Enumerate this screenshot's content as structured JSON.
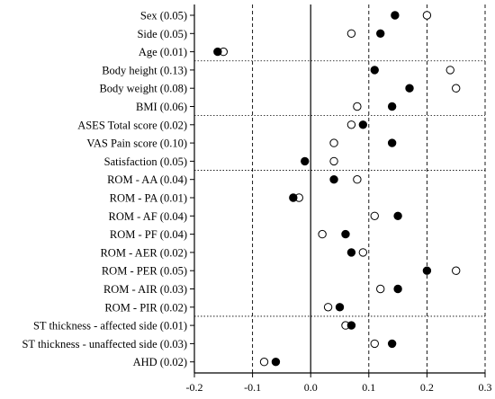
{
  "chart_data": {
    "type": "scatter",
    "title": "",
    "xlabel": "",
    "ylabel": "",
    "xlim": [
      -0.2,
      0.3
    ],
    "x_ticks": [
      -0.2,
      -0.1,
      0.0,
      0.1,
      0.2,
      0.3
    ],
    "x_tick_labels": [
      "-0.2",
      "-0.1",
      "0.0",
      "0.1",
      "0.2",
      "0.3"
    ],
    "grid": "vertical dashed lines at x ticks; dotted horizontal separators between variable groups",
    "group_separators_after": [
      "Age (0.01)",
      "BMI (0.06)",
      "Satisfaction (0.05)",
      "ROM - PIR (0.02)"
    ],
    "categories": [
      "Sex (0.05)",
      "Side (0.05)",
      "Age (0.01)",
      "Body height (0.13)",
      "Body weight (0.08)",
      "BMI (0.06)",
      "ASES Total score (0.02)",
      "VAS Pain score (0.10)",
      "Satisfaction (0.05)",
      "ROM - AA (0.04)",
      "ROM - PA (0.01)",
      "ROM - AF (0.04)",
      "ROM - PF (0.04)",
      "ROM - AER (0.02)",
      "ROM - PER (0.05)",
      "ROM - AIR (0.03)",
      "ROM - PIR (0.02)",
      "ST thickness - affected side (0.01)",
      "ST thickness - unaffected side (0.03)",
      "AHD (0.02)"
    ],
    "series": [
      {
        "marker": "open-circle",
        "color": "#000000",
        "values": [
          0.2,
          0.07,
          -0.15,
          0.24,
          0.25,
          0.08,
          0.07,
          0.04,
          0.04,
          0.08,
          -0.02,
          0.11,
          0.02,
          0.09,
          0.25,
          0.12,
          0.03,
          0.06,
          0.11,
          -0.08
        ]
      },
      {
        "marker": "filled-circle",
        "color": "#000000",
        "values": [
          0.145,
          0.12,
          -0.16,
          0.11,
          0.17,
          0.14,
          0.09,
          0.14,
          -0.01,
          0.04,
          -0.03,
          0.15,
          0.06,
          0.07,
          0.2,
          0.15,
          0.05,
          0.07,
          0.14,
          -0.06
        ]
      }
    ]
  }
}
